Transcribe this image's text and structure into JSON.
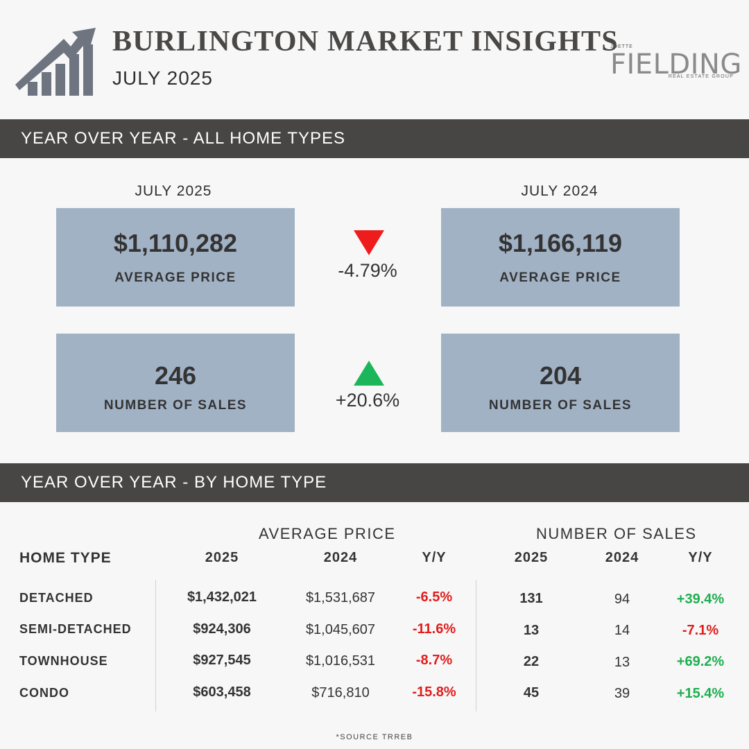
{
  "header": {
    "title": "BURLINGTON MARKET INSIGHTS",
    "subtitle": "JULY 2025",
    "icon": "growth-chart-icon",
    "brand": {
      "pre": "JOETTE",
      "name": "FIELDING",
      "sub": "REAL ESTATE GROUP"
    }
  },
  "yoy_all": {
    "bar_label": "YEAR OVER YEAR - ALL HOME TYPES",
    "current_label": "JULY 2025",
    "previous_label": "JULY 2024",
    "price": {
      "current": "$1,110,282",
      "previous": "$1,166,119",
      "label": "AVERAGE PRICE",
      "change": "-4.79%",
      "direction": "down"
    },
    "sales": {
      "current": "246",
      "previous": "204",
      "label": "NUMBER OF SALES",
      "change": "+20.6%",
      "direction": "up"
    }
  },
  "by_type": {
    "bar_label": "YEAR OVER YEAR - BY HOME TYPE",
    "price_group": "AVERAGE PRICE",
    "sales_group": "NUMBER OF SALES",
    "headers": {
      "type": "HOME TYPE",
      "y2025": "2025",
      "y2024": "2024",
      "yy": "Y/Y"
    },
    "rows": [
      {
        "type": "DETACHED",
        "price_2025": "$1,432,021",
        "price_2024": "$1,531,687",
        "price_yy": "-6.5%",
        "sales_2025": "131",
        "sales_2024": "94",
        "sales_yy": "+39.4%"
      },
      {
        "type": "SEMI-DETACHED",
        "price_2025": "$924,306",
        "price_2024": "$1,045,607",
        "price_yy": "-11.6%",
        "sales_2025": "13",
        "sales_2024": "14",
        "sales_yy": "-7.1%"
      },
      {
        "type": "TOWNHOUSE",
        "price_2025": "$927,545",
        "price_2024": "$1,016,531",
        "price_yy": "-8.7%",
        "sales_2025": "22",
        "sales_2024": "13",
        "sales_yy": "+69.2%"
      },
      {
        "type": "CONDO",
        "price_2025": "$603,458",
        "price_2024": "$716,810",
        "price_yy": "-15.8%",
        "sales_2025": "45",
        "sales_2024": "39",
        "sales_yy": "+15.4%"
      }
    ]
  },
  "footer": {
    "source": "*SOURCE TRREB"
  },
  "colors": {
    "bar": "#484644",
    "box": "#a2b2c5",
    "negative": "#e11d1d",
    "positive": "#1fae4f",
    "icon": "#6e7480"
  }
}
